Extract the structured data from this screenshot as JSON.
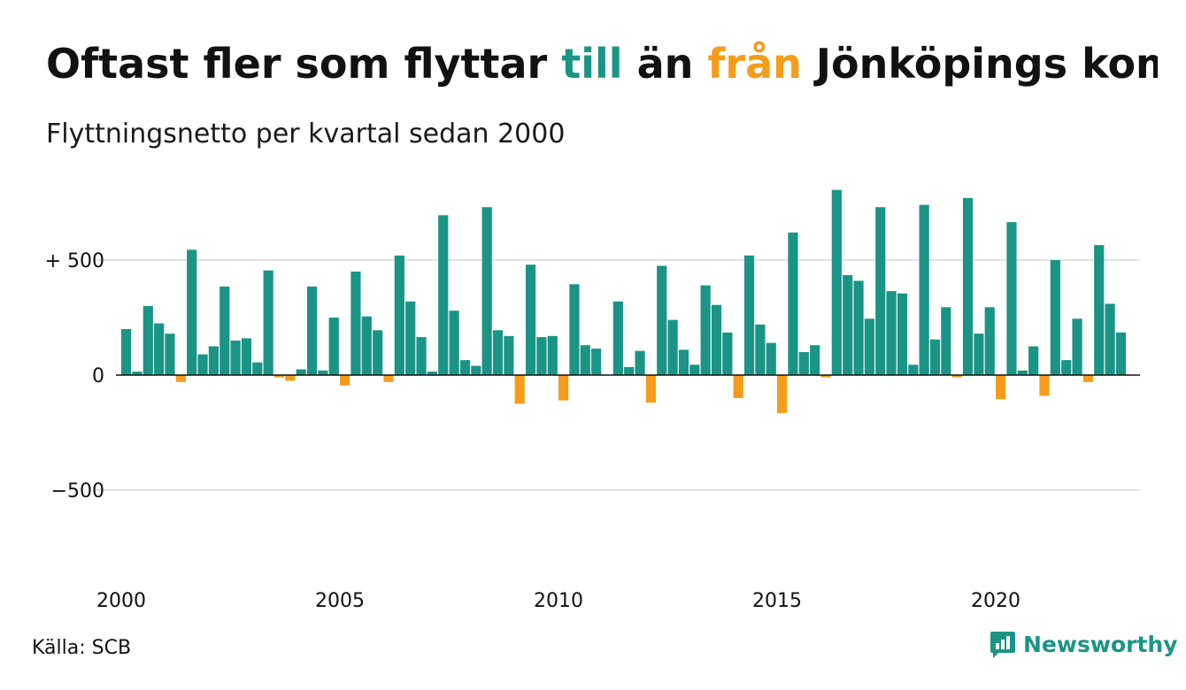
{
  "title": {
    "part1": "Oftast fler som flyttar ",
    "word_to": "till",
    "part2": " än ",
    "word_from": "från",
    "part3": " Jönköpings kommun"
  },
  "subtitle": "Flyttningsnetto per kvartal sedan 2000",
  "source": "Källa: SCB",
  "logo": {
    "text": "Newsworthy",
    "icon": "bar-chart-speech-bubble-icon"
  },
  "colors": {
    "positive": "#1a9585",
    "negative": "#f59c1a",
    "grid": "#e3e3e3",
    "baseline": "#111111",
    "logo": "#1a9585"
  },
  "chart_data": {
    "type": "bar",
    "xlabel": "",
    "ylabel": "",
    "ylim": [
      -800,
      800
    ],
    "ytick_values": [
      -500,
      0,
      500
    ],
    "ytick_labels": [
      "−500",
      "0",
      "+ 500"
    ],
    "grid": true,
    "x_start": 2000,
    "quarters_per_year": 4,
    "xtick_years": [
      2000,
      2005,
      2010,
      2015,
      2020
    ],
    "values": [
      200,
      15,
      300,
      225,
      180,
      -30,
      545,
      90,
      125,
      385,
      150,
      160,
      55,
      455,
      -10,
      -25,
      25,
      385,
      20,
      250,
      -45,
      450,
      255,
      195,
      -30,
      520,
      320,
      165,
      15,
      695,
      280,
      65,
      40,
      730,
      195,
      170,
      -125,
      480,
      165,
      170,
      -110,
      395,
      130,
      115,
      0,
      320,
      35,
      105,
      -120,
      475,
      240,
      110,
      45,
      390,
      305,
      185,
      -100,
      520,
      220,
      140,
      -165,
      620,
      100,
      130,
      -10,
      805,
      435,
      410,
      245,
      730,
      365,
      355,
      45,
      740,
      155,
      295,
      -10,
      770,
      180,
      295,
      -105,
      665,
      20,
      125,
      -90,
      500,
      65,
      245,
      -30,
      565,
      310,
      185
    ]
  }
}
